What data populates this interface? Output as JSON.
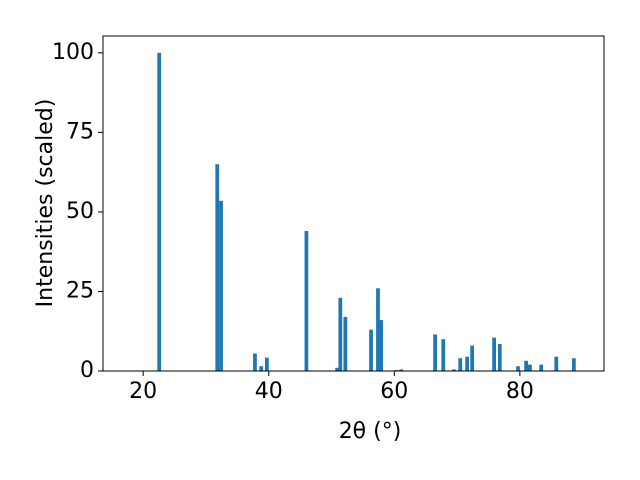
{
  "chart_data": {
    "type": "bar",
    "x": [
      22.55,
      31.8,
      32.4,
      37.8,
      38.8,
      39.7,
      46.0,
      50.9,
      51.4,
      52.2,
      56.3,
      57.4,
      57.9,
      60.4,
      61.1,
      66.5,
      67.8,
      69.5,
      70.5,
      71.6,
      72.4,
      75.9,
      76.8,
      79.7,
      81.0,
      81.6,
      83.4,
      85.8,
      88.6
    ],
    "values": [
      100,
      65,
      53.5,
      5.5,
      1.5,
      4.2,
      44,
      1,
      23,
      17,
      13,
      26,
      16,
      0.3,
      0.5,
      11.5,
      10,
      0.5,
      4,
      4.5,
      8,
      10.5,
      8.5,
      1.5,
      3.2,
      2,
      2,
      4.5,
      4
    ],
    "color": "#1f77b4",
    "xlabel": "2θ (°)",
    "ylabel": "Intensities (scaled)",
    "xlim": [
      13.6,
      93.4
    ],
    "xticks": [
      20,
      40,
      60,
      80
    ],
    "ylim": [
      0,
      105.3
    ],
    "yticks": [
      0,
      25,
      50,
      75,
      100
    ],
    "grid": false
  }
}
